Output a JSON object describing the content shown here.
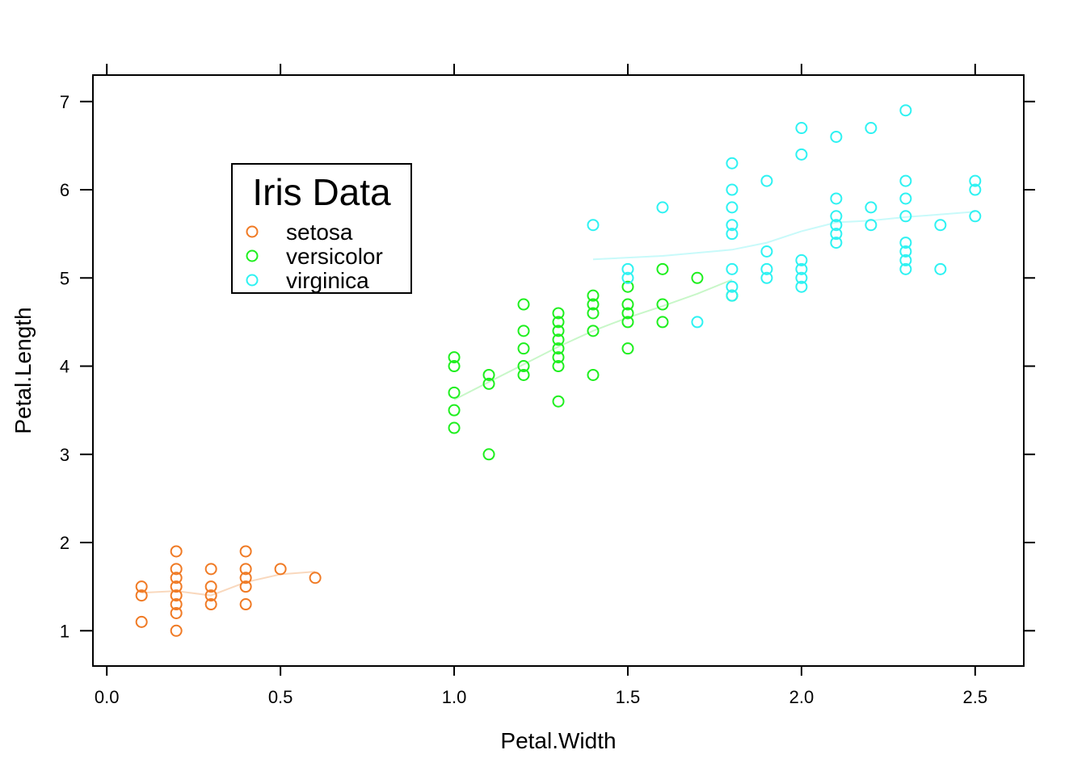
{
  "chart_data": {
    "type": "scatter",
    "xlabel": "Petal.Width",
    "ylabel": "Petal.Length",
    "xlim": [
      -0.04,
      2.64
    ],
    "ylim": [
      0.6,
      7.3
    ],
    "xticks": [
      0.0,
      0.5,
      1.0,
      1.5,
      2.0,
      2.5
    ],
    "xtick_labels": [
      "0.0",
      "0.5",
      "1.0",
      "1.5",
      "2.0",
      "2.5"
    ],
    "yticks": [
      1,
      2,
      3,
      4,
      5,
      6,
      7
    ],
    "ytick_labels": [
      "1",
      "2",
      "3",
      "4",
      "5",
      "6",
      "7"
    ],
    "grid": false,
    "legend": {
      "title": "Iris Data",
      "placement": "top-left",
      "entries": [
        "setosa",
        "versicolor",
        "virginica"
      ]
    },
    "series": [
      {
        "name": "setosa",
        "color": "#F07A24",
        "line_color": "#F9D8BD",
        "points": [
          [
            0.1,
            1.5
          ],
          [
            0.1,
            1.4
          ],
          [
            0.1,
            1.1
          ],
          [
            0.2,
            1.9
          ],
          [
            0.2,
            1.7
          ],
          [
            0.2,
            1.6
          ],
          [
            0.2,
            1.5
          ],
          [
            0.2,
            1.4
          ],
          [
            0.2,
            1.3
          ],
          [
            0.2,
            1.2
          ],
          [
            0.2,
            1.0
          ],
          [
            0.3,
            1.7
          ],
          [
            0.3,
            1.5
          ],
          [
            0.3,
            1.4
          ],
          [
            0.3,
            1.3
          ],
          [
            0.4,
            1.9
          ],
          [
            0.4,
            1.7
          ],
          [
            0.4,
            1.6
          ],
          [
            0.4,
            1.5
          ],
          [
            0.4,
            1.3
          ],
          [
            0.5,
            1.7
          ],
          [
            0.6,
            1.6
          ]
        ],
        "smooth": [
          [
            0.1,
            1.43
          ],
          [
            0.2,
            1.45
          ],
          [
            0.3,
            1.4
          ],
          [
            0.4,
            1.55
          ],
          [
            0.5,
            1.64
          ],
          [
            0.6,
            1.67
          ]
        ]
      },
      {
        "name": "versicolor",
        "color": "#1EEF1E",
        "line_color": "#C8F7C8",
        "points": [
          [
            1.0,
            4.1
          ],
          [
            1.0,
            4.0
          ],
          [
            1.0,
            3.7
          ],
          [
            1.0,
            3.5
          ],
          [
            1.0,
            3.3
          ],
          [
            1.1,
            3.9
          ],
          [
            1.1,
            3.8
          ],
          [
            1.1,
            3.0
          ],
          [
            1.2,
            4.7
          ],
          [
            1.2,
            4.4
          ],
          [
            1.2,
            4.2
          ],
          [
            1.2,
            4.0
          ],
          [
            1.2,
            3.9
          ],
          [
            1.3,
            4.6
          ],
          [
            1.3,
            4.5
          ],
          [
            1.3,
            4.4
          ],
          [
            1.3,
            4.3
          ],
          [
            1.3,
            4.2
          ],
          [
            1.3,
            4.1
          ],
          [
            1.3,
            4.0
          ],
          [
            1.3,
            3.6
          ],
          [
            1.4,
            4.8
          ],
          [
            1.4,
            4.7
          ],
          [
            1.4,
            4.6
          ],
          [
            1.4,
            4.4
          ],
          [
            1.4,
            3.9
          ],
          [
            1.5,
            4.9
          ],
          [
            1.5,
            4.7
          ],
          [
            1.5,
            4.6
          ],
          [
            1.5,
            4.5
          ],
          [
            1.5,
            4.2
          ],
          [
            1.6,
            5.1
          ],
          [
            1.6,
            4.7
          ],
          [
            1.6,
            4.5
          ],
          [
            1.7,
            5.0
          ],
          [
            1.8,
            4.8
          ]
        ],
        "smooth": [
          [
            1.0,
            3.62
          ],
          [
            1.1,
            3.82
          ],
          [
            1.2,
            4.02
          ],
          [
            1.3,
            4.22
          ],
          [
            1.4,
            4.4
          ],
          [
            1.5,
            4.55
          ],
          [
            1.6,
            4.68
          ],
          [
            1.7,
            4.82
          ],
          [
            1.8,
            4.98
          ]
        ]
      },
      {
        "name": "virginica",
        "color": "#2EF2F2",
        "line_color": "#C8FAFA",
        "points": [
          [
            1.4,
            5.6
          ],
          [
            1.5,
            5.1
          ],
          [
            1.5,
            5.0
          ],
          [
            1.6,
            5.8
          ],
          [
            1.7,
            4.5
          ],
          [
            1.8,
            6.3
          ],
          [
            1.8,
            6.0
          ],
          [
            1.8,
            5.8
          ],
          [
            1.8,
            5.6
          ],
          [
            1.8,
            5.5
          ],
          [
            1.8,
            5.1
          ],
          [
            1.8,
            4.9
          ],
          [
            1.8,
            4.8
          ],
          [
            1.9,
            6.1
          ],
          [
            1.9,
            5.3
          ],
          [
            1.9,
            5.1
          ],
          [
            1.9,
            5.0
          ],
          [
            2.0,
            6.7
          ],
          [
            2.0,
            6.4
          ],
          [
            2.0,
            5.2
          ],
          [
            2.0,
            5.1
          ],
          [
            2.0,
            5.0
          ],
          [
            2.0,
            4.9
          ],
          [
            2.1,
            6.6
          ],
          [
            2.1,
            5.9
          ],
          [
            2.1,
            5.7
          ],
          [
            2.1,
            5.6
          ],
          [
            2.1,
            5.5
          ],
          [
            2.1,
            5.4
          ],
          [
            2.2,
            6.7
          ],
          [
            2.2,
            5.8
          ],
          [
            2.2,
            5.6
          ],
          [
            2.3,
            6.9
          ],
          [
            2.3,
            6.1
          ],
          [
            2.3,
            5.9
          ],
          [
            2.3,
            5.7
          ],
          [
            2.3,
            5.4
          ],
          [
            2.3,
            5.3
          ],
          [
            2.3,
            5.2
          ],
          [
            2.3,
            5.1
          ],
          [
            2.4,
            5.6
          ],
          [
            2.4,
            5.1
          ],
          [
            2.5,
            6.1
          ],
          [
            2.5,
            6.0
          ],
          [
            2.5,
            5.7
          ]
        ],
        "smooth": [
          [
            1.4,
            5.21
          ],
          [
            1.6,
            5.25
          ],
          [
            1.8,
            5.32
          ],
          [
            1.9,
            5.4
          ],
          [
            2.0,
            5.53
          ],
          [
            2.1,
            5.63
          ],
          [
            2.2,
            5.65
          ],
          [
            2.3,
            5.69
          ],
          [
            2.4,
            5.72
          ],
          [
            2.5,
            5.75
          ]
        ]
      }
    ]
  }
}
